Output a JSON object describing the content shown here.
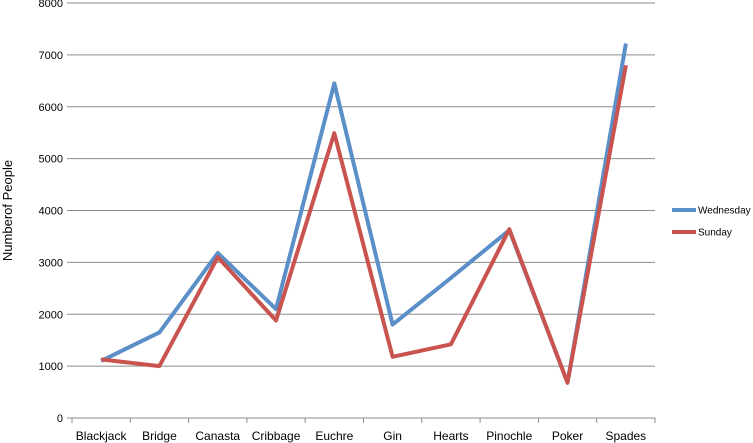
{
  "chart_data": {
    "type": "line",
    "categories": [
      "Blackjack",
      "Bridge",
      "Canasta",
      "Cribbage",
      "Euchre",
      "Gin",
      "Hearts",
      "Pinochle",
      "Poker",
      "Spades"
    ],
    "series": [
      {
        "name": "Wednesday",
        "color": "#5b8fc7",
        "values": [
          1100,
          1650,
          3180,
          2100,
          6450,
          1800,
          2700,
          3620,
          680,
          7220
        ]
      },
      {
        "name": "Sunday",
        "color": "#c9534f",
        "values": [
          1130,
          1000,
          3100,
          1880,
          5490,
          1180,
          1420,
          3640,
          680,
          6800
        ]
      }
    ],
    "ylabel": "Numberof People",
    "xlabel": "",
    "title": "",
    "ylim": [
      0,
      8000
    ],
    "yticks": [
      0,
      1000,
      2000,
      3000,
      4000,
      5000,
      6000,
      7000,
      8000
    ],
    "grid": true,
    "legend_position": "right"
  }
}
